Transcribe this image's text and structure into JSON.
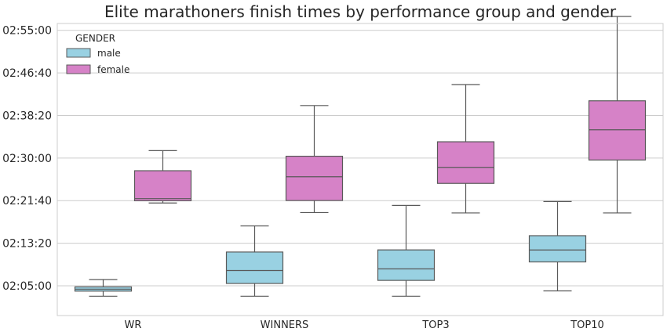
{
  "chart_data": {
    "type": "box",
    "title": "Elite marathoners finish times by performance group and gender",
    "xlabel": "",
    "ylabel": "",
    "categories": [
      "WR",
      "WINNERS",
      "TOP3",
      "TOP10"
    ],
    "y_ticks": [
      "02:05:00",
      "02:13:20",
      "02:21:40",
      "02:30:00",
      "02:38:20",
      "02:46:40",
      "02:55:00"
    ],
    "y_tick_values_seconds": [
      7500,
      8000,
      8500,
      9000,
      9500,
      10000,
      10500
    ],
    "ylim_seconds": [
      7150,
      10580
    ],
    "grid": true,
    "legend": {
      "title": "GENDER",
      "placement": "top-left"
    },
    "series": [
      {
        "name": "male",
        "color": "#99d1e2",
        "boxes": [
          {
            "min": "02:02:57",
            "q1": "02:03:57",
            "median": "02:04:20",
            "q3": "02:04:47",
            "max": "02:06:13"
          },
          {
            "min": "02:02:57",
            "q1": "02:05:27",
            "median": "02:07:59",
            "q3": "02:11:36",
            "max": "02:16:43"
          },
          {
            "min": "02:02:57",
            "q1": "02:06:03",
            "median": "02:08:18",
            "q3": "02:12:01",
            "max": "02:20:43"
          },
          {
            "min": "02:04:00",
            "q1": "02:09:40",
            "median": "02:12:00",
            "q3": "02:14:48",
            "max": "02:21:29"
          }
        ]
      },
      {
        "name": "female",
        "color": "#d682c7",
        "boxes": [
          {
            "min": "02:21:12",
            "q1": "02:21:38",
            "median": "02:22:03",
            "q3": "02:27:31",
            "max": "02:31:27"
          },
          {
            "min": "02:19:20",
            "q1": "02:21:41",
            "median": "02:26:20",
            "q3": "02:30:21",
            "max": "02:40:16"
          },
          {
            "min": "02:19:15",
            "q1": "02:25:02",
            "median": "02:28:10",
            "q3": "02:33:11",
            "max": "02:44:23"
          },
          {
            "min": "02:19:15",
            "q1": "02:29:37",
            "median": "02:35:32",
            "q3": "02:41:12",
            "max": "02:57:43"
          }
        ]
      }
    ]
  }
}
